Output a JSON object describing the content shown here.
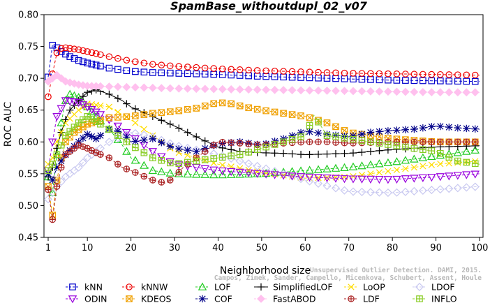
{
  "watermark": {
    "line1": "Unsupervised Outlier Detection. DAMI, 2015.",
    "line2": "Campos, Zimek, Sander, Campello, Micenkova, Schubert, Assent, Houle"
  },
  "chart_data": {
    "type": "line",
    "title": "SpamBase_withoutdupl_02_v07",
    "xlabel": "Neighborhood size",
    "ylabel": "ROC AUC",
    "xlim": [
      1,
      100
    ],
    "ylim": [
      0.45,
      0.8
    ],
    "xticks": [
      1,
      10,
      20,
      30,
      40,
      50,
      60,
      70,
      80,
      90,
      100
    ],
    "yticks": [
      "0.45",
      "0.50",
      "0.55",
      "0.60",
      "0.65",
      "0.70",
      "0.75",
      "0.80"
    ],
    "grid": false,
    "legend_position": "bottom",
    "series": [
      {
        "name": "kNN",
        "color": "#0000cc",
        "marker": "square",
        "dash": "4,3",
        "points": [
          [
            1,
            0.702
          ],
          [
            2,
            0.752
          ],
          [
            3,
            0.748
          ],
          [
            4,
            0.742
          ],
          [
            5,
            0.738
          ],
          [
            6,
            0.734
          ],
          [
            8,
            0.728
          ],
          [
            10,
            0.724
          ],
          [
            15,
            0.716
          ],
          [
            20,
            0.711
          ],
          [
            25,
            0.709
          ],
          [
            30,
            0.708
          ],
          [
            40,
            0.706
          ],
          [
            50,
            0.703
          ],
          [
            60,
            0.701
          ],
          [
            70,
            0.699
          ],
          [
            80,
            0.697
          ],
          [
            90,
            0.696
          ],
          [
            100,
            0.695
          ]
        ]
      },
      {
        "name": "kNNW",
        "color": "#ee0000",
        "marker": "circle",
        "dash": "4,3",
        "points": [
          [
            1,
            0.671
          ],
          [
            2,
            0.707
          ],
          [
            3,
            0.74
          ],
          [
            4,
            0.747
          ],
          [
            5,
            0.748
          ],
          [
            6,
            0.747
          ],
          [
            8,
            0.745
          ],
          [
            10,
            0.742
          ],
          [
            15,
            0.734
          ],
          [
            20,
            0.727
          ],
          [
            25,
            0.722
          ],
          [
            30,
            0.719
          ],
          [
            40,
            0.715
          ],
          [
            50,
            0.712
          ],
          [
            60,
            0.71
          ],
          [
            70,
            0.708
          ],
          [
            80,
            0.707
          ],
          [
            90,
            0.706
          ],
          [
            100,
            0.705
          ]
        ]
      },
      {
        "name": "LOF",
        "color": "#22cc22",
        "marker": "triangle",
        "dash": "4,3",
        "points": [
          [
            1,
            0.545
          ],
          [
            2,
            0.52
          ],
          [
            3,
            0.58
          ],
          [
            4,
            0.63
          ],
          [
            5,
            0.665
          ],
          [
            6,
            0.675
          ],
          [
            8,
            0.67
          ],
          [
            10,
            0.655
          ],
          [
            12,
            0.64
          ],
          [
            15,
            0.62
          ],
          [
            18,
            0.595
          ],
          [
            20,
            0.575
          ],
          [
            25,
            0.555
          ],
          [
            30,
            0.55
          ],
          [
            40,
            0.548
          ],
          [
            50,
            0.55
          ],
          [
            60,
            0.555
          ],
          [
            70,
            0.56
          ],
          [
            80,
            0.568
          ],
          [
            90,
            0.578
          ],
          [
            100,
            0.588
          ]
        ]
      },
      {
        "name": "SimplifiedLOF",
        "color": "#000000",
        "marker": "plus",
        "dash": "",
        "points": [
          [
            1,
            0.545
          ],
          [
            2,
            0.56
          ],
          [
            3,
            0.59
          ],
          [
            4,
            0.615
          ],
          [
            5,
            0.635
          ],
          [
            6,
            0.65
          ],
          [
            8,
            0.665
          ],
          [
            10,
            0.678
          ],
          [
            12,
            0.682
          ],
          [
            15,
            0.675
          ],
          [
            18,
            0.665
          ],
          [
            20,
            0.655
          ],
          [
            25,
            0.64
          ],
          [
            30,
            0.625
          ],
          [
            35,
            0.608
          ],
          [
            40,
            0.592
          ],
          [
            45,
            0.585
          ],
          [
            50,
            0.583
          ],
          [
            55,
            0.582
          ],
          [
            60,
            0.58
          ],
          [
            70,
            0.582
          ],
          [
            80,
            0.588
          ],
          [
            90,
            0.592
          ],
          [
            100,
            0.594
          ]
        ]
      },
      {
        "name": "LoOP",
        "color": "#ffdd00",
        "marker": "x",
        "dash": "4,3",
        "points": [
          [
            1,
            0.565
          ],
          [
            2,
            0.575
          ],
          [
            3,
            0.6
          ],
          [
            5,
            0.63
          ],
          [
            8,
            0.65
          ],
          [
            10,
            0.66
          ],
          [
            15,
            0.655
          ],
          [
            20,
            0.635
          ],
          [
            25,
            0.61
          ],
          [
            30,
            0.585
          ],
          [
            40,
            0.565
          ],
          [
            50,
            0.552
          ],
          [
            60,
            0.543
          ],
          [
            70,
            0.545
          ],
          [
            80,
            0.555
          ],
          [
            90,
            0.565
          ],
          [
            100,
            0.57
          ]
        ]
      },
      {
        "name": "LDOF",
        "color": "#c8c8f0",
        "marker": "diamond",
        "dash": "4,3",
        "points": [
          [
            1,
            0.51
          ],
          [
            2,
            0.52
          ],
          [
            3,
            0.53
          ],
          [
            5,
            0.545
          ],
          [
            8,
            0.56
          ],
          [
            10,
            0.575
          ],
          [
            15,
            0.6
          ],
          [
            20,
            0.615
          ],
          [
            25,
            0.608
          ],
          [
            30,
            0.595
          ],
          [
            40,
            0.58
          ],
          [
            50,
            0.56
          ],
          [
            60,
            0.54
          ],
          [
            70,
            0.522
          ],
          [
            80,
            0.52
          ],
          [
            90,
            0.525
          ],
          [
            100,
            0.53
          ]
        ]
      },
      {
        "name": "ODIN",
        "color": "#9900dd",
        "marker": "triangle-down",
        "dash": "4,3",
        "points": [
          [
            1,
            0.555
          ],
          [
            2,
            0.6
          ],
          [
            3,
            0.64
          ],
          [
            5,
            0.665
          ],
          [
            8,
            0.662
          ],
          [
            10,
            0.655
          ],
          [
            15,
            0.635
          ],
          [
            20,
            0.61
          ],
          [
            25,
            0.585
          ],
          [
            30,
            0.565
          ],
          [
            40,
            0.555
          ],
          [
            50,
            0.55
          ],
          [
            60,
            0.545
          ],
          [
            70,
            0.542
          ],
          [
            80,
            0.541
          ],
          [
            90,
            0.545
          ],
          [
            100,
            0.55
          ]
        ]
      },
      {
        "name": "KDEOS",
        "color": "#f0a000",
        "marker": "square-x",
        "dash": "4,3",
        "points": [
          [
            1,
            0.53
          ],
          [
            2,
            0.485
          ],
          [
            3,
            0.54
          ],
          [
            4,
            0.575
          ],
          [
            5,
            0.6
          ],
          [
            7,
            0.615
          ],
          [
            10,
            0.628
          ],
          [
            15,
            0.638
          ],
          [
            20,
            0.64
          ],
          [
            25,
            0.645
          ],
          [
            30,
            0.648
          ],
          [
            35,
            0.653
          ],
          [
            40,
            0.662
          ],
          [
            43,
            0.66
          ],
          [
            46,
            0.655
          ],
          [
            50,
            0.65
          ],
          [
            55,
            0.645
          ],
          [
            60,
            0.64
          ],
          [
            65,
            0.63
          ],
          [
            70,
            0.615
          ],
          [
            80,
            0.605
          ],
          [
            90,
            0.6
          ],
          [
            100,
            0.6
          ]
        ]
      },
      {
        "name": "COF",
        "color": "#000088",
        "marker": "star",
        "dash": "4,3",
        "points": [
          [
            1,
            0.55
          ],
          [
            2,
            0.54
          ],
          [
            3,
            0.56
          ],
          [
            5,
            0.58
          ],
          [
            8,
            0.6
          ],
          [
            10,
            0.612
          ],
          [
            12,
            0.605
          ],
          [
            15,
            0.62
          ],
          [
            18,
            0.615
          ],
          [
            20,
            0.6
          ],
          [
            25,
            0.605
          ],
          [
            30,
            0.59
          ],
          [
            35,
            0.585
          ],
          [
            40,
            0.597
          ],
          [
            45,
            0.6
          ],
          [
            50,
            0.595
          ],
          [
            55,
            0.605
          ],
          [
            60,
            0.617
          ],
          [
            65,
            0.612
          ],
          [
            70,
            0.608
          ],
          [
            75,
            0.615
          ],
          [
            80,
            0.618
          ],
          [
            85,
            0.62
          ],
          [
            90,
            0.625
          ],
          [
            95,
            0.622
          ],
          [
            100,
            0.62
          ]
        ]
      },
      {
        "name": "FastABOD",
        "color": "#ffc0ee",
        "marker": "diamond-filled",
        "dash": "4,3",
        "points": [
          [
            1,
            0.695
          ],
          [
            3,
            0.705
          ],
          [
            5,
            0.695
          ],
          [
            8,
            0.69
          ],
          [
            10,
            0.688
          ],
          [
            15,
            0.687
          ],
          [
            20,
            0.686
          ],
          [
            30,
            0.684
          ],
          [
            40,
            0.683
          ],
          [
            50,
            0.682
          ],
          [
            60,
            0.681
          ],
          [
            70,
            0.68
          ],
          [
            80,
            0.679
          ],
          [
            90,
            0.678
          ],
          [
            100,
            0.678
          ]
        ]
      },
      {
        "name": "LDF",
        "color": "#aa2222",
        "marker": "circle-plus",
        "dash": "4,3",
        "points": [
          [
            1,
            0.525
          ],
          [
            2,
            0.478
          ],
          [
            3,
            0.53
          ],
          [
            4,
            0.56
          ],
          [
            5,
            0.58
          ],
          [
            8,
            0.595
          ],
          [
            10,
            0.59
          ],
          [
            12,
            0.583
          ],
          [
            15,
            0.575
          ],
          [
            18,
            0.56
          ],
          [
            20,
            0.555
          ],
          [
            25,
            0.54
          ],
          [
            28,
            0.535
          ],
          [
            30,
            0.545
          ],
          [
            32,
            0.56
          ],
          [
            35,
            0.575
          ],
          [
            38,
            0.59
          ],
          [
            40,
            0.6
          ],
          [
            45,
            0.598
          ],
          [
            50,
            0.595
          ],
          [
            55,
            0.598
          ],
          [
            60,
            0.6
          ],
          [
            65,
            0.6
          ],
          [
            70,
            0.598
          ],
          [
            80,
            0.6
          ],
          [
            90,
            0.6
          ],
          [
            100,
            0.6
          ]
        ]
      },
      {
        "name": "INFLO",
        "color": "#88cc22",
        "marker": "square-cross",
        "dash": "4,3",
        "points": [
          [
            1,
            0.555
          ],
          [
            2,
            0.565
          ],
          [
            3,
            0.58
          ],
          [
            5,
            0.61
          ],
          [
            8,
            0.63
          ],
          [
            10,
            0.64
          ],
          [
            15,
            0.62
          ],
          [
            20,
            0.595
          ],
          [
            25,
            0.575
          ],
          [
            30,
            0.565
          ],
          [
            35,
            0.57
          ],
          [
            40,
            0.575
          ],
          [
            45,
            0.58
          ],
          [
            50,
            0.59
          ],
          [
            55,
            0.6
          ],
          [
            60,
            0.61
          ],
          [
            62,
            0.642
          ],
          [
            65,
            0.61
          ],
          [
            70,
            0.605
          ],
          [
            80,
            0.595
          ],
          [
            90,
            0.585
          ],
          [
            95,
            0.57
          ],
          [
            100,
            0.565
          ]
        ]
      }
    ]
  }
}
